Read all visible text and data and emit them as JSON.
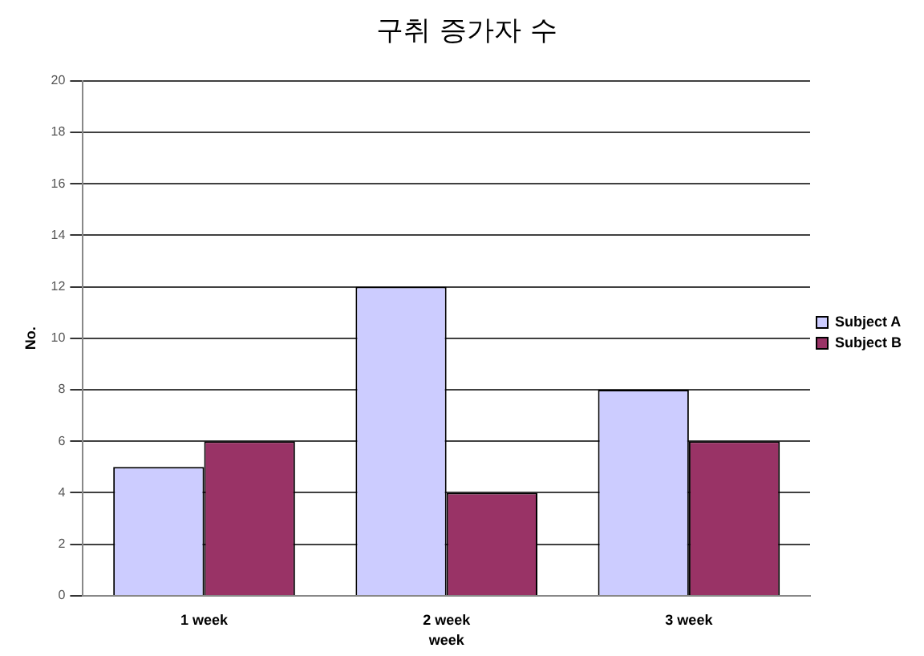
{
  "chart_data": {
    "type": "bar",
    "title": "구취 증가자 수",
    "xlabel": "week",
    "ylabel": "No.",
    "categories": [
      "1 week",
      "2 week",
      "3 week"
    ],
    "series": [
      {
        "name": "Subject A",
        "color": "#ccccff",
        "values": [
          5,
          12,
          8
        ]
      },
      {
        "name": "Subject B",
        "color": "#993366",
        "values": [
          6,
          4,
          6
        ]
      }
    ],
    "ylim": [
      0,
      20
    ],
    "yticks": [
      0,
      2,
      4,
      6,
      8,
      10,
      12,
      14,
      16,
      18,
      20
    ],
    "grid": "y",
    "legend": "right"
  }
}
